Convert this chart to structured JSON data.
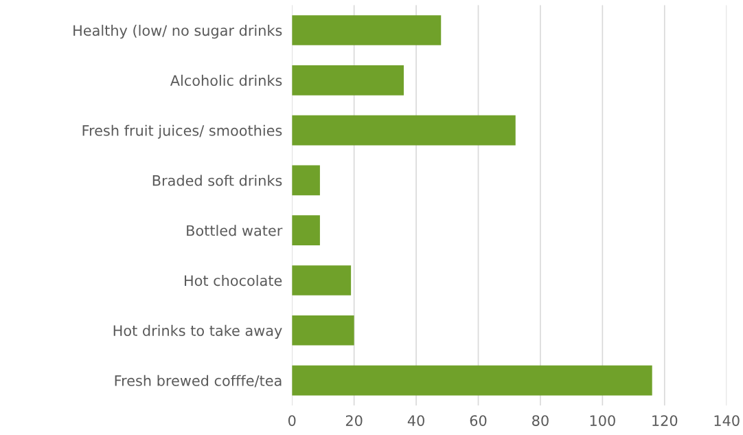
{
  "chart_data": {
    "type": "bar",
    "orientation": "horizontal",
    "categories": [
      "Healthy (low/ no sugar drinks",
      "Alcoholic drinks",
      "Fresh fruit juices/ smoothies",
      "Braded soft drinks",
      "Bottled water",
      "Hot chocolate",
      "Hot drinks to take away",
      "Fresh brewed cofffe/tea"
    ],
    "values": [
      48,
      36,
      72,
      9,
      9,
      19,
      20,
      116
    ],
    "color": "#70a12a",
    "xlim": [
      0,
      140
    ],
    "xticks": [
      0,
      20,
      40,
      60,
      80,
      100,
      120,
      140
    ],
    "grid": "x"
  }
}
